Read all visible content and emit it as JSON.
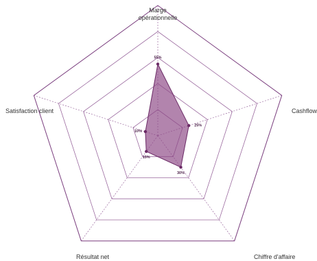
{
  "chart_data": {
    "type": "radar",
    "categories": [
      "Marge\nopérationnelle",
      "Cashflow",
      "Chiffre d'affaire",
      "Résultat net",
      "Satisfaction client"
    ],
    "values": [
      55,
      25,
      30,
      15,
      10
    ],
    "value_labels": [
      "55%",
      "25%",
      "30%",
      "15%",
      "10%"
    ],
    "rmax": 100,
    "rings": [
      20,
      40,
      60,
      80,
      100
    ],
    "colors": {
      "frame": "#7b3f7f",
      "grid": "#9b6a9f",
      "area_fill": "#8e4a86",
      "area_stroke": "#6b2a66",
      "point": "#6b2a66"
    }
  }
}
